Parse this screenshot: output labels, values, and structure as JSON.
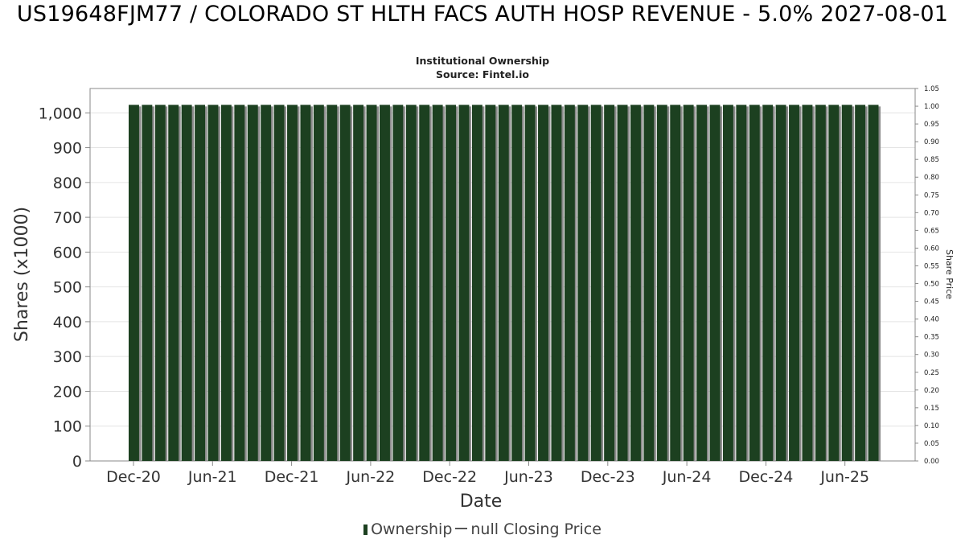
{
  "title": "US19648FJM77 / COLORADO ST HLTH FACS AUTH HOSP REVENUE - 5.0% 2027-08-01",
  "subtitle": "Institutional Ownership",
  "source": "Source: Fintel.io",
  "legend": {
    "ownership": "Ownership",
    "price": "null Closing Price"
  },
  "colors": {
    "bar": "#1c4020",
    "bar_shadow": "#8a8a8a",
    "grid": "#e4e4e4",
    "axis": "#888888"
  },
  "chart_data": {
    "type": "bar",
    "xlabel": "Date",
    "ylabel": "Shares (x1000)",
    "y2label": "Share Price",
    "ylim": [
      0,
      1070
    ],
    "y2lim": [
      0,
      1.05
    ],
    "yticks": [
      "0",
      "100",
      "200",
      "300",
      "400",
      "500",
      "600",
      "700",
      "800",
      "900",
      "1,000"
    ],
    "y2ticks": [
      "0.00",
      "0.05",
      "0.10",
      "0.15",
      "0.20",
      "0.25",
      "0.30",
      "0.35",
      "0.40",
      "0.45",
      "0.50",
      "0.55",
      "0.60",
      "0.65",
      "0.70",
      "0.75",
      "0.80",
      "0.85",
      "0.90",
      "0.95",
      "1.00",
      "1.05"
    ],
    "xticks": [
      "Dec-20",
      "Jun-21",
      "Dec-21",
      "Jun-22",
      "Dec-22",
      "Jun-23",
      "Dec-23",
      "Jun-24",
      "Dec-24",
      "Jun-25"
    ],
    "grid": true,
    "legend_position": "bottom",
    "series": [
      {
        "name": "Ownership",
        "values": [
          1023,
          1023,
          1023,
          1023,
          1023,
          1023,
          1023,
          1023,
          1023,
          1023,
          1023,
          1023,
          1023,
          1023,
          1023,
          1023,
          1023,
          1023,
          1023,
          1023,
          1023,
          1023,
          1023,
          1023,
          1023,
          1023,
          1023,
          1023,
          1023,
          1023,
          1023,
          1023,
          1023,
          1023,
          1023,
          1023,
          1023,
          1023,
          1023,
          1023,
          1023,
          1023,
          1023,
          1023,
          1023,
          1023,
          1023,
          1023,
          1023,
          1023,
          1023,
          1023,
          1023,
          1023,
          1023,
          1023,
          1023
        ]
      }
    ]
  }
}
